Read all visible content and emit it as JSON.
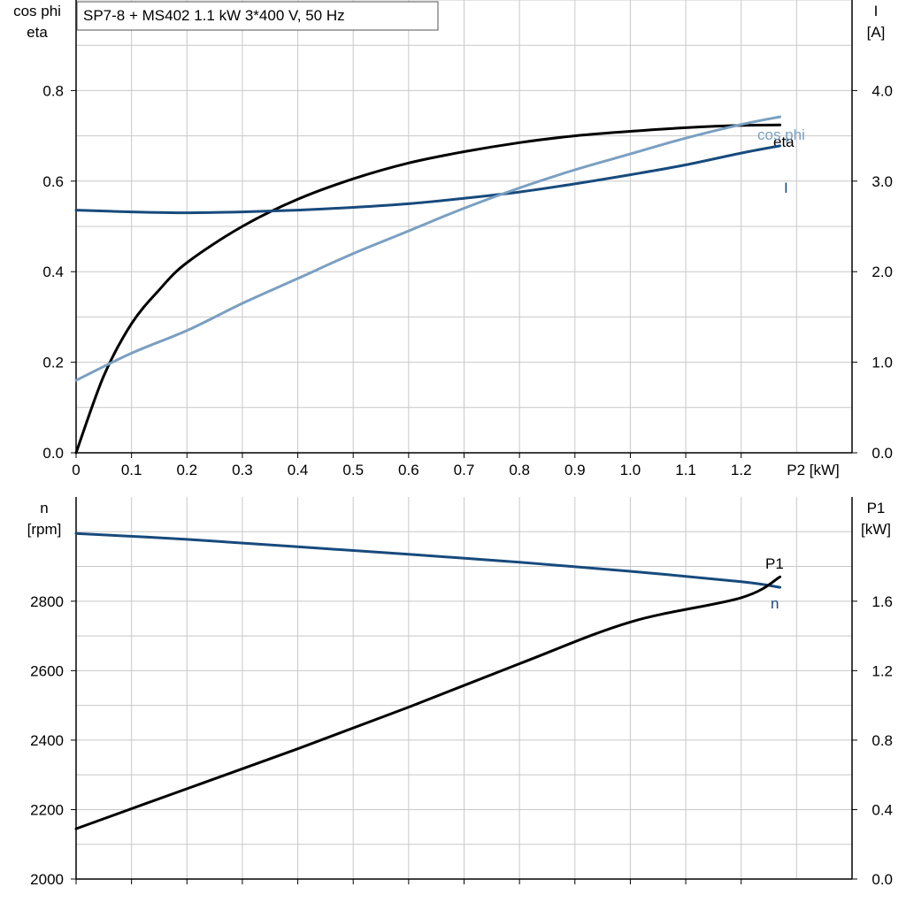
{
  "title": "SP7-8 + MS402   1.1 kW   3*400 V, 50 Hz",
  "colors": {
    "eta": "#000000",
    "I": "#174A7C",
    "cos_phi": "#7A9FC2",
    "n": "#174A7C",
    "P1": "#000000",
    "grid": "#c8c8c8"
  },
  "chart_data": [
    {
      "type": "line",
      "title": "SP7-8 + MS402   1.1 kW   3*400 V, 50 Hz",
      "xlabel": "P2 [kW]",
      "ylabel_left": [
        "cos phi",
        "eta"
      ],
      "ylabel_right": [
        "I",
        "[A]"
      ],
      "xlim": [
        0,
        1.4
      ],
      "ylim_left": [
        0,
        1.0
      ],
      "ylim_right": [
        0,
        5.0
      ],
      "xticks": [
        0,
        0.1,
        0.2,
        0.3,
        0.4,
        0.5,
        0.6,
        0.7,
        0.8,
        0.9,
        1.0,
        1.1,
        1.2
      ],
      "xtick_labels": [
        "0",
        "0.1",
        "0.2",
        "0.3",
        "0.4",
        "0.5",
        "0.6",
        "0.7",
        "0.8",
        "0.9",
        "1.0",
        "1.1",
        "1.2"
      ],
      "yticks_left": [
        0,
        0.2,
        0.4,
        0.6,
        0.8
      ],
      "ytick_labels_left": [
        "0.0",
        "0.2",
        "0.4",
        "0.6",
        "0.8"
      ],
      "yticks_right": [
        0,
        1,
        2,
        3,
        4
      ],
      "ytick_labels_right": [
        "0.0",
        "1.0",
        "2.0",
        "3.0",
        "4.0"
      ],
      "grid": true,
      "series": [
        {
          "name": "eta",
          "axis": "left",
          "color": "#000000",
          "x": [
            0,
            0.05,
            0.1,
            0.15,
            0.2,
            0.3,
            0.4,
            0.5,
            0.6,
            0.7,
            0.8,
            0.9,
            1.0,
            1.1,
            1.2,
            1.27
          ],
          "y": [
            0,
            0.17,
            0.285,
            0.36,
            0.42,
            0.5,
            0.56,
            0.605,
            0.64,
            0.665,
            0.685,
            0.7,
            0.71,
            0.718,
            0.723,
            0.724
          ]
        },
        {
          "name": "I",
          "axis": "right",
          "color": "#174A7C",
          "x": [
            0,
            0.1,
            0.2,
            0.3,
            0.4,
            0.5,
            0.6,
            0.7,
            0.8,
            0.9,
            1.0,
            1.1,
            1.2,
            1.27
          ],
          "y": [
            2.68,
            2.66,
            2.65,
            2.66,
            2.68,
            2.71,
            2.75,
            2.81,
            2.88,
            2.97,
            3.07,
            3.18,
            3.31,
            3.39
          ]
        },
        {
          "name": "cos phi",
          "axis": "left",
          "color": "#7A9FC2",
          "x": [
            0,
            0.1,
            0.2,
            0.3,
            0.4,
            0.5,
            0.6,
            0.7,
            0.8,
            0.9,
            1.0,
            1.1,
            1.2,
            1.27
          ],
          "y": [
            0.16,
            0.22,
            0.27,
            0.33,
            0.385,
            0.44,
            0.49,
            0.54,
            0.585,
            0.625,
            0.66,
            0.695,
            0.725,
            0.742
          ]
        }
      ]
    },
    {
      "type": "line",
      "ylabel_left": [
        "n",
        "[rpm]"
      ],
      "ylabel_right": [
        "P1",
        "[kW]"
      ],
      "xlim": [
        0,
        1.4
      ],
      "ylim_left": [
        2000,
        3100
      ],
      "ylim_right": [
        0,
        2.2
      ],
      "yticks_left": [
        2000,
        2200,
        2400,
        2600,
        2800
      ],
      "ytick_labels_left": [
        "2000",
        "2200",
        "2400",
        "2600",
        "2800"
      ],
      "yticks_right": [
        0,
        0.4,
        0.8,
        1.2,
        1.6
      ],
      "ytick_labels_right": [
        "0.0",
        "0.4",
        "0.8",
        "1.2",
        "1.6"
      ],
      "grid": true,
      "series": [
        {
          "name": "n",
          "axis": "left",
          "color": "#174A7C",
          "x": [
            0,
            0.2,
            0.4,
            0.6,
            0.8,
            1.0,
            1.2,
            1.27
          ],
          "y": [
            2995,
            2978,
            2957,
            2935,
            2912,
            2886,
            2856,
            2840
          ]
        },
        {
          "name": "P1",
          "axis": "right",
          "color": "#000000",
          "x": [
            0,
            0.2,
            0.4,
            0.6,
            0.8,
            1.0,
            1.2,
            1.27
          ],
          "y": [
            0.29,
            0.52,
            0.75,
            0.99,
            1.24,
            1.48,
            1.62,
            1.74
          ]
        }
      ]
    }
  ]
}
